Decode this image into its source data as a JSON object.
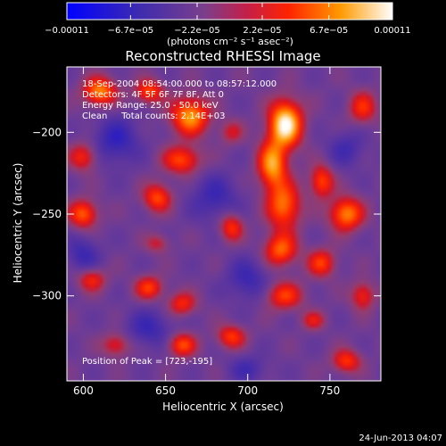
{
  "chart_data": {
    "type": "heatmap",
    "title": "Reconstructed RHESSI Image",
    "xlabel": "Heliocentric X (arcsec)",
    "ylabel": "Heliocentric Y (arcsec)",
    "xlim": [
      590,
      781
    ],
    "ylim": [
      -352,
      -160
    ],
    "x_ticks": [
      600,
      650,
      700,
      750
    ],
    "x_tick_labels": [
      "600",
      "650",
      "700",
      "750"
    ],
    "y_ticks": [
      -200,
      -250,
      -300
    ],
    "y_tick_labels": [
      "−200",
      "−250",
      "−300"
    ],
    "colorbar": {
      "range": [
        -0.00011,
        0.00011
      ],
      "ticks": [
        -0.00011,
        -6.7e-05,
        -2.2e-05,
        2.2e-05,
        6.7e-05,
        0.00011
      ],
      "tick_labels": [
        "−0.00011",
        "−6.7e−05",
        "−2.2e−05",
        "2.2e−05",
        "6.7e−05",
        "0.00011"
      ],
      "unit_label": "(photons cm⁻² s⁻¹ asec⁻²)",
      "colormap": [
        "#0000ff",
        "#5a2a8c",
        "#9b4f7a",
        "#ff1a00",
        "#ff8c00",
        "#ffffff"
      ]
    },
    "annotations": [
      "18-Sep-2004 08:54:00.000 to 08:57:12.000",
      "Detectors: 4F 5F 6F 7F 8F, Att 0",
      "Energy Range: 25.0 - 50.0 keV",
      "Clean     Total counts: 2.14E+03",
      "Position of Peak = [723,-195]"
    ],
    "peak": {
      "x": 723,
      "y": -195
    },
    "sources": [
      {
        "x": 723,
        "y": -195,
        "amp": 1.0,
        "sx": 7,
        "sy": 10
      },
      {
        "x": 715,
        "y": -220,
        "amp": 0.75,
        "sx": 6,
        "sy": 10
      },
      {
        "x": 722,
        "y": -245,
        "amp": 0.65,
        "sx": 7,
        "sy": 10
      },
      {
        "x": 720,
        "y": -272,
        "amp": 0.6,
        "sx": 7,
        "sy": 7
      },
      {
        "x": 722,
        "y": -300,
        "amp": 0.5,
        "sx": 8,
        "sy": 6
      },
      {
        "x": 665,
        "y": -190,
        "amp": 0.75,
        "sx": 8,
        "sy": 8
      },
      {
        "x": 660,
        "y": -217,
        "amp": 0.55,
        "sx": 8,
        "sy": 6
      },
      {
        "x": 610,
        "y": -175,
        "amp": 0.7,
        "sx": 7,
        "sy": 6
      },
      {
        "x": 640,
        "y": -175,
        "amp": 0.55,
        "sx": 6,
        "sy": 5
      },
      {
        "x": 600,
        "y": -215,
        "amp": 0.45,
        "sx": 6,
        "sy": 6
      },
      {
        "x": 645,
        "y": -240,
        "amp": 0.55,
        "sx": 6,
        "sy": 6
      },
      {
        "x": 600,
        "y": -250,
        "amp": 0.6,
        "sx": 6,
        "sy": 6
      },
      {
        "x": 605,
        "y": -290,
        "amp": 0.45,
        "sx": 6,
        "sy": 5
      },
      {
        "x": 640,
        "y": -295,
        "amp": 0.5,
        "sx": 6,
        "sy": 5
      },
      {
        "x": 660,
        "y": -305,
        "amp": 0.45,
        "sx": 6,
        "sy": 5
      },
      {
        "x": 660,
        "y": -330,
        "amp": 0.55,
        "sx": 6,
        "sy": 5
      },
      {
        "x": 690,
        "y": -325,
        "amp": 0.5,
        "sx": 6,
        "sy": 5
      },
      {
        "x": 690,
        "y": -258,
        "amp": 0.5,
        "sx": 5,
        "sy": 6
      },
      {
        "x": 745,
        "y": -230,
        "amp": 0.55,
        "sx": 5,
        "sy": 7
      },
      {
        "x": 760,
        "y": -250,
        "amp": 0.7,
        "sx": 7,
        "sy": 7
      },
      {
        "x": 745,
        "y": -280,
        "amp": 0.5,
        "sx": 6,
        "sy": 6
      },
      {
        "x": 770,
        "y": -185,
        "amp": 0.45,
        "sx": 6,
        "sy": 7
      },
      {
        "x": 770,
        "y": -300,
        "amp": 0.45,
        "sx": 5,
        "sy": 6
      },
      {
        "x": 760,
        "y": -340,
        "amp": 0.5,
        "sx": 6,
        "sy": 5
      },
      {
        "x": 620,
        "y": -330,
        "amp": 0.4,
        "sx": 6,
        "sy": 5
      },
      {
        "x": 645,
        "y": -268,
        "amp": 0.3,
        "sx": 5,
        "sy": 4
      },
      {
        "x": 690,
        "y": -200,
        "amp": 0.3,
        "sx": 5,
        "sy": 5
      },
      {
        "x": 740,
        "y": -315,
        "amp": 0.35,
        "sx": 5,
        "sy": 4
      }
    ],
    "negatives": [
      {
        "x": 620,
        "y": -205,
        "amp": 0.35,
        "sx": 10,
        "sy": 10
      },
      {
        "x": 680,
        "y": -240,
        "amp": 0.3,
        "sx": 10,
        "sy": 10
      },
      {
        "x": 640,
        "y": -320,
        "amp": 0.3,
        "sx": 10,
        "sy": 8
      },
      {
        "x": 700,
        "y": -290,
        "amp": 0.3,
        "sx": 9,
        "sy": 9
      },
      {
        "x": 760,
        "y": -210,
        "amp": 0.25,
        "sx": 8,
        "sy": 8
      },
      {
        "x": 600,
        "y": -275,
        "amp": 0.3,
        "sx": 7,
        "sy": 8
      },
      {
        "x": 700,
        "y": -345,
        "amp": 0.25,
        "sx": 8,
        "sy": 6
      }
    ]
  },
  "timestamp": "24-Jun-2013 04:07"
}
